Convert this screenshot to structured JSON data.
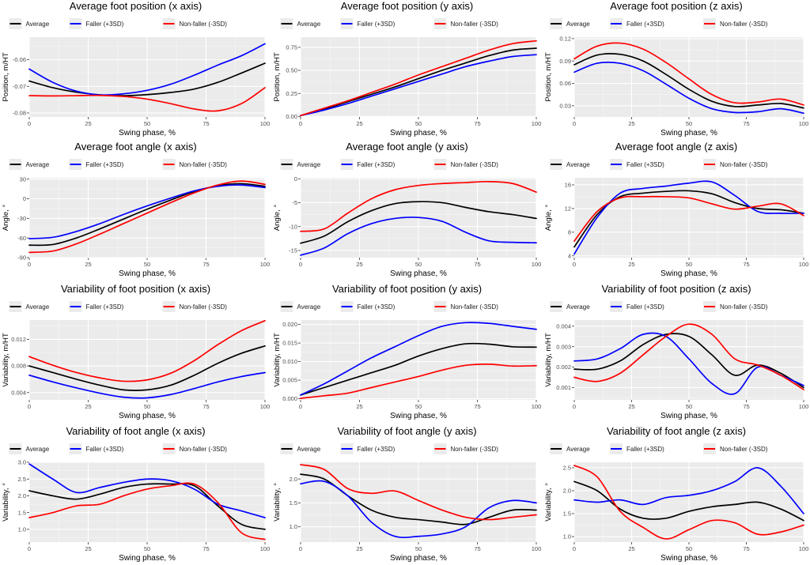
{
  "legend_labels": [
    "Average",
    "Faller (+3SD)",
    "Non-faller (-3SD)"
  ],
  "series_colors": {
    "Average": "#000000",
    "Faller (+3SD)": "#0000ff",
    "Non-faller (-3SD)": "#ff0000"
  },
  "x_axis_label": "Swing phase, %",
  "x_ticks": [
    0,
    25,
    50,
    75,
    100
  ],
  "chart_data": [
    {
      "type": "line",
      "title": "Average foot position (x axis)",
      "xlabel": "Swing phase, %",
      "ylabel": "Position, m/HT",
      "x": [
        0,
        10,
        20,
        30,
        40,
        50,
        60,
        70,
        80,
        90,
        100
      ],
      "xlim": [
        0,
        100
      ],
      "ylim": [
        -0.0815,
        -0.0515
      ],
      "yticks": [
        -0.08,
        -0.07,
        -0.06
      ],
      "ytick_labels": [
        "-0.08",
        "-0.07",
        "-0.06"
      ],
      "series": [
        {
          "name": "Average",
          "values": [
            -0.068,
            -0.0705,
            -0.0722,
            -0.0732,
            -0.0735,
            -0.0731,
            -0.0723,
            -0.071,
            -0.0685,
            -0.065,
            -0.0613
          ]
        },
        {
          "name": "Faller (+3SD)",
          "values": [
            -0.0635,
            -0.0685,
            -0.0718,
            -0.0732,
            -0.0728,
            -0.0715,
            -0.0692,
            -0.0658,
            -0.062,
            -0.0585,
            -0.054
          ]
        },
        {
          "name": "Non-faller (-3SD)",
          "values": [
            -0.0735,
            -0.0736,
            -0.0735,
            -0.0734,
            -0.0738,
            -0.0748,
            -0.0765,
            -0.0785,
            -0.0792,
            -0.0765,
            -0.0705
          ]
        }
      ]
    },
    {
      "type": "line",
      "title": "Average foot position (y axis)",
      "xlabel": "Swing phase, %",
      "ylabel": "Position, m/HT",
      "x": [
        0,
        10,
        20,
        30,
        40,
        50,
        60,
        70,
        80,
        90,
        100
      ],
      "xlim": [
        0,
        100
      ],
      "ylim": [
        -0.005,
        0.86
      ],
      "yticks": [
        0,
        0.25,
        0.5,
        0.75
      ],
      "ytick_labels": [
        "0.00",
        "0.25",
        "0.50",
        "0.75"
      ],
      "series": [
        {
          "name": "Average",
          "values": [
            0.01,
            0.08,
            0.16,
            0.24,
            0.32,
            0.41,
            0.5,
            0.58,
            0.66,
            0.72,
            0.74
          ]
        },
        {
          "name": "Faller (+3SD)",
          "values": [
            0.01,
            0.07,
            0.14,
            0.22,
            0.3,
            0.38,
            0.46,
            0.54,
            0.6,
            0.65,
            0.67
          ]
        },
        {
          "name": "Non-faller (-3SD)",
          "values": [
            0.01,
            0.09,
            0.17,
            0.26,
            0.35,
            0.45,
            0.54,
            0.63,
            0.72,
            0.79,
            0.82
          ]
        }
      ]
    },
    {
      "type": "line",
      "title": "Average foot position (z axis)",
      "xlabel": "Swing phase, %",
      "ylabel": "Position, m/HT",
      "x": [
        0,
        10,
        20,
        30,
        40,
        50,
        60,
        70,
        80,
        90,
        100
      ],
      "xlim": [
        0,
        100
      ],
      "ylim": [
        0.015,
        0.122
      ],
      "yticks": [
        0.03,
        0.06,
        0.09,
        0.12
      ],
      "ytick_labels": [
        "0.03",
        "0.06",
        "0.09",
        "0.12"
      ],
      "series": [
        {
          "name": "Average",
          "values": [
            0.085,
            0.098,
            0.099,
            0.09,
            0.072,
            0.052,
            0.036,
            0.029,
            0.031,
            0.033,
            0.027
          ]
        },
        {
          "name": "Faller (+3SD)",
          "values": [
            0.075,
            0.087,
            0.087,
            0.077,
            0.059,
            0.04,
            0.026,
            0.021,
            0.022,
            0.026,
            0.02
          ]
        },
        {
          "name": "Non-faller (-3SD)",
          "values": [
            0.093,
            0.11,
            0.114,
            0.106,
            0.088,
            0.066,
            0.045,
            0.034,
            0.035,
            0.039,
            0.031
          ]
        }
      ]
    },
    {
      "type": "line",
      "title": "Average foot angle (x axis)",
      "xlabel": "Swing phase, %",
      "ylabel": "Angle, °",
      "x": [
        0,
        10,
        20,
        30,
        40,
        50,
        60,
        70,
        80,
        90,
        100
      ],
      "xlim": [
        0,
        100
      ],
      "ylim": [
        -90,
        32
      ],
      "yticks": [
        -90,
        -60,
        -30,
        0,
        30
      ],
      "ytick_labels": [
        "-90",
        "-60",
        "-30",
        "0",
        "30"
      ],
      "series": [
        {
          "name": "Average",
          "values": [
            -71,
            -70,
            -60,
            -46,
            -31,
            -16,
            -2,
            11,
            20,
            23,
            19
          ]
        },
        {
          "name": "Faller (+3SD)",
          "values": [
            -61,
            -59,
            -50,
            -38,
            -24,
            -11,
            1,
            12,
            19,
            21,
            17
          ]
        },
        {
          "name": "Non-faller (-3SD)",
          "values": [
            -82,
            -80,
            -69,
            -54,
            -38,
            -22,
            -6,
            9,
            21,
            27,
            22
          ]
        }
      ]
    },
    {
      "type": "line",
      "title": "Average foot angle (y axis)",
      "xlabel": "Swing phase, %",
      "ylabel": "Angle, °",
      "x": [
        0,
        10,
        20,
        30,
        40,
        50,
        60,
        70,
        80,
        90,
        100
      ],
      "xlim": [
        0,
        100
      ],
      "ylim": [
        -16.5,
        0.2
      ],
      "yticks": [
        -15,
        -10,
        -5,
        0
      ],
      "ytick_labels": [
        "-15",
        "-10",
        "-5",
        "0"
      ],
      "series": [
        {
          "name": "Average",
          "values": [
            -13.5,
            -12,
            -9,
            -6.7,
            -5.2,
            -4.8,
            -5,
            -6,
            -6.9,
            -7.5,
            -8.3
          ]
        },
        {
          "name": "Faller (+3SD)",
          "values": [
            -16,
            -14.5,
            -11.5,
            -9.4,
            -8.3,
            -8.1,
            -8.9,
            -11.2,
            -13,
            -13.3,
            -13.4
          ]
        },
        {
          "name": "Non-faller (-3SD)",
          "values": [
            -11,
            -10.5,
            -7.2,
            -4.2,
            -2.3,
            -1.4,
            -1,
            -0.8,
            -0.6,
            -1,
            -2.8
          ]
        }
      ]
    },
    {
      "type": "line",
      "title": "Average foot angle (z axis)",
      "xlabel": "Swing phase, %",
      "ylabel": "Angle, °",
      "x": [
        0,
        10,
        20,
        30,
        40,
        50,
        60,
        70,
        80,
        90,
        100
      ],
      "xlim": [
        0,
        100
      ],
      "ylim": [
        3.7,
        17.2
      ],
      "yticks": [
        4,
        8,
        12,
        16
      ],
      "ytick_labels": [
        "4",
        "8",
        "12",
        "16"
      ],
      "series": [
        {
          "name": "Average",
          "values": [
            5.5,
            11,
            14,
            14.6,
            14.9,
            15,
            14.5,
            13,
            12,
            11.8,
            11.2
          ]
        },
        {
          "name": "Faller (+3SD)",
          "values": [
            4.3,
            10.5,
            14.6,
            15.4,
            15.8,
            16.3,
            16.5,
            14.2,
            11.5,
            11.2,
            11.2
          ]
        },
        {
          "name": "Non-faller (-3SD)",
          "values": [
            6.5,
            11.5,
            13.8,
            14,
            14,
            13.8,
            12.8,
            11.9,
            12.4,
            12.8,
            10.8
          ]
        }
      ]
    },
    {
      "type": "line",
      "title": "Variability of foot position (x axis)",
      "xlabel": "Swing phase, %",
      "ylabel": "Variability, m/HT",
      "x": [
        0,
        10,
        20,
        30,
        40,
        50,
        60,
        70,
        80,
        90,
        100
      ],
      "xlim": [
        0,
        100
      ],
      "ylim": [
        0.0029,
        0.0149
      ],
      "yticks": [
        0.004,
        0.008,
        0.012
      ],
      "ytick_labels": [
        "0.004",
        "0.008",
        "0.012"
      ],
      "series": [
        {
          "name": "Average",
          "values": [
            0.008,
            0.007,
            0.006,
            0.0051,
            0.0044,
            0.0044,
            0.0051,
            0.0066,
            0.0084,
            0.0099,
            0.011
          ]
        },
        {
          "name": "Faller (+3SD)",
          "values": [
            0.0066,
            0.0056,
            0.0047,
            0.0039,
            0.0033,
            0.0032,
            0.0037,
            0.0046,
            0.0056,
            0.0064,
            0.007
          ]
        },
        {
          "name": "Non-faller (-3SD)",
          "values": [
            0.0094,
            0.0081,
            0.007,
            0.0062,
            0.0057,
            0.0059,
            0.0069,
            0.0088,
            0.0112,
            0.0133,
            0.0148
          ]
        }
      ]
    },
    {
      "type": "line",
      "title": "Variability of foot position (y axis)",
      "xlabel": "Swing phase, %",
      "ylabel": "Variability, m/HT",
      "x": [
        0,
        10,
        20,
        30,
        40,
        50,
        60,
        70,
        80,
        90,
        100
      ],
      "xlim": [
        0,
        100
      ],
      "ylim": [
        -0.0003,
        0.0212
      ],
      "yticks": [
        0,
        0.005,
        0.01,
        0.015,
        0.02
      ],
      "ytick_labels": [
        "0.000",
        "0.005",
        "0.010",
        "0.015",
        "0.020"
      ],
      "series": [
        {
          "name": "Average",
          "values": [
            0.001,
            0.003,
            0.005,
            0.007,
            0.009,
            0.0115,
            0.0135,
            0.0148,
            0.0147,
            0.014,
            0.0139
          ]
        },
        {
          "name": "Faller (+3SD)",
          "values": [
            0.001,
            0.004,
            0.0075,
            0.011,
            0.014,
            0.017,
            0.0195,
            0.0205,
            0.0203,
            0.0195,
            0.0187
          ]
        },
        {
          "name": "Non-faller (-3SD)",
          "values": [
            0.0001,
            0.0008,
            0.0015,
            0.003,
            0.0045,
            0.006,
            0.0077,
            0.009,
            0.0093,
            0.0088,
            0.0089
          ]
        }
      ]
    },
    {
      "type": "line",
      "title": "Variability of foot position (z axis)",
      "xlabel": "Swing phase, %",
      "ylabel": "Variability, m/HT",
      "x": [
        0,
        10,
        20,
        30,
        40,
        50,
        60,
        70,
        80,
        90,
        100
      ],
      "xlim": [
        0,
        100
      ],
      "ylim": [
        0.0004,
        0.0043
      ],
      "yticks": [
        0.001,
        0.002,
        0.003,
        0.004
      ],
      "ytick_labels": [
        "0.001",
        "0.002",
        "0.003",
        "0.004"
      ],
      "series": [
        {
          "name": "Average",
          "values": [
            0.0019,
            0.0019,
            0.0023,
            0.0031,
            0.0036,
            0.0035,
            0.0026,
            0.0016,
            0.0021,
            0.0017,
            0.001
          ]
        },
        {
          "name": "Faller (+3SD)",
          "values": [
            0.0023,
            0.0024,
            0.0029,
            0.0036,
            0.0035,
            0.0024,
            0.0012,
            0.0007,
            0.002,
            0.0016,
            0.0011
          ]
        },
        {
          "name": "Non-faller (-3SD)",
          "values": [
            0.0015,
            0.0013,
            0.0017,
            0.0026,
            0.0035,
            0.0041,
            0.0036,
            0.0024,
            0.0021,
            0.0016,
            0.0009
          ]
        }
      ]
    },
    {
      "type": "line",
      "title": "Variability of foot angle (x axis)",
      "xlabel": "Swing phase, %",
      "ylabel": "Variability, °",
      "x": [
        0,
        10,
        20,
        30,
        40,
        50,
        60,
        70,
        80,
        90,
        100
      ],
      "xlim": [
        0,
        100
      ],
      "ylim": [
        0.62,
        3.0
      ],
      "yticks": [
        1.0,
        1.5,
        2.0,
        2.5,
        3.0
      ],
      "ytick_labels": [
        "1.0",
        "1.5",
        "2.0",
        "2.5",
        "3.0"
      ],
      "series": [
        {
          "name": "Average",
          "values": [
            2.15,
            2.0,
            1.9,
            2.05,
            2.25,
            2.35,
            2.35,
            2.3,
            1.7,
            1.15,
            1.0
          ]
        },
        {
          "name": "Faller (+3SD)",
          "values": [
            2.95,
            2.5,
            2.1,
            2.25,
            2.4,
            2.5,
            2.45,
            2.2,
            1.75,
            1.55,
            1.35
          ]
        },
        {
          "name": "Non-faller (-3SD)",
          "values": [
            1.35,
            1.5,
            1.7,
            1.75,
            2.0,
            2.2,
            2.3,
            2.35,
            1.8,
            0.9,
            0.7
          ]
        }
      ]
    },
    {
      "type": "line",
      "title": "Variability of foot angle (y axis)",
      "xlabel": "Swing phase, %",
      "ylabel": "Variability, °",
      "x": [
        0,
        10,
        20,
        30,
        40,
        50,
        60,
        70,
        80,
        90,
        100
      ],
      "xlim": [
        0,
        100
      ],
      "ylim": [
        0.68,
        2.35
      ],
      "yticks": [
        1.0,
        1.5,
        2.0
      ],
      "ytick_labels": [
        "1.0",
        "1.5",
        "2.0"
      ],
      "series": [
        {
          "name": "Average",
          "values": [
            2.1,
            2.0,
            1.65,
            1.35,
            1.2,
            1.15,
            1.1,
            1.05,
            1.2,
            1.35,
            1.35
          ]
        },
        {
          "name": "Faller (+3SD)",
          "values": [
            1.9,
            1.95,
            1.65,
            1.1,
            0.8,
            0.8,
            0.85,
            1.0,
            1.4,
            1.55,
            1.5
          ]
        },
        {
          "name": "Non-faller (-3SD)",
          "values": [
            2.3,
            2.2,
            1.8,
            1.7,
            1.75,
            1.55,
            1.35,
            1.2,
            1.15,
            1.2,
            1.25
          ]
        }
      ]
    },
    {
      "type": "line",
      "title": "Variability of foot angle (z axis)",
      "xlabel": "Swing phase, %",
      "ylabel": "Variability, °",
      "x": [
        0,
        10,
        20,
        30,
        40,
        50,
        60,
        70,
        80,
        90,
        100
      ],
      "xlim": [
        0,
        100
      ],
      "ylim": [
        0.88,
        2.62
      ],
      "yticks": [
        1.0,
        1.5,
        2.0,
        2.5
      ],
      "ytick_labels": [
        "1.0",
        "1.5",
        "2.0",
        "2.5"
      ],
      "series": [
        {
          "name": "Average",
          "values": [
            2.2,
            2.0,
            1.6,
            1.4,
            1.4,
            1.55,
            1.65,
            1.7,
            1.75,
            1.6,
            1.35
          ]
        },
        {
          "name": "Faller (+3SD)",
          "values": [
            1.8,
            1.75,
            1.8,
            1.7,
            1.85,
            1.9,
            2.0,
            2.2,
            2.5,
            2.1,
            1.5
          ]
        },
        {
          "name": "Non-faller (-3SD)",
          "values": [
            2.55,
            2.3,
            1.55,
            1.2,
            0.95,
            1.15,
            1.35,
            1.3,
            1.05,
            1.1,
            1.25
          ]
        }
      ]
    }
  ]
}
